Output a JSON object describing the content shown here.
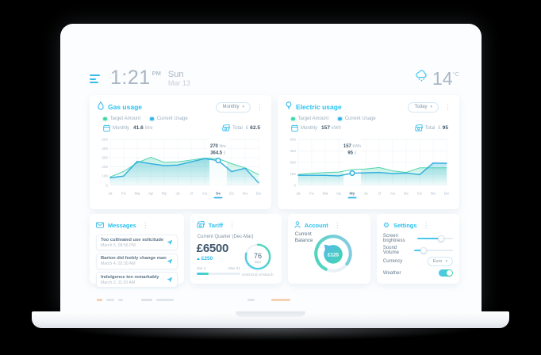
{
  "header": {
    "menu_icon": "hamburger",
    "time": "1:21",
    "meridiem": "PM",
    "day": "Sun",
    "date": "Mar 13",
    "weather_icon": "snow-cloud",
    "temperature": "14",
    "temperature_unit": "°C"
  },
  "panels": {
    "gas": {
      "icon": "droplet-icon",
      "title": "Gas usage",
      "period": "Monthly",
      "legend_target": "Target Amount",
      "legend_current": "Current Usage",
      "stat_label": "Monthly",
      "stat_value": "41.6",
      "stat_unit": "litre",
      "total_label": "Total",
      "total_currency": "£",
      "total_value": "62.5"
    },
    "electric": {
      "icon": "bulb-icon",
      "title": "Electric usage",
      "period": "Today",
      "legend_target": "Target Amount",
      "legend_current": "Current Usage",
      "stat_label": "Monthly",
      "stat_value": "157",
      "stat_unit": "kWh",
      "total_label": "Total",
      "total_currency": "£",
      "total_value": "95"
    },
    "messages": {
      "icon": "envelope-icon",
      "title": "Messages",
      "items": [
        {
          "text": "Too cultivated use solicitude",
          "time": "March 5, 08:56 PM"
        },
        {
          "text": "Barton did feebly change man",
          "time": "March 4, 02:30 AM"
        },
        {
          "text": "Indulgence ten remarkably",
          "time": "March 2, 11:20 AM"
        }
      ]
    },
    "tariff": {
      "icon": "banknotes-icon",
      "title": "Tariff",
      "subtitle": "Current Quarter (Dec-Mar)",
      "amount": "£6500",
      "delta": "£250",
      "range_start": "Jan 1",
      "range_end": "Mar 31",
      "progress_pct": 28,
      "days_value": "76",
      "days_label": "days",
      "footnote": "Until End of March"
    },
    "account": {
      "icon": "person-icon",
      "title": "Account",
      "balance_label": "Current Balance",
      "balance_value": "£125"
    },
    "settings": {
      "icon": "gear-icon",
      "title": "Settings",
      "brightness_label": "Screen brightness",
      "brightness_pct": 66,
      "volume_label": "Sound Volume",
      "volume_pct": 26,
      "currency_label": "Currency",
      "currency_value": "Euro",
      "weather_label": "Weather",
      "weather_on": true
    }
  },
  "chart_data": [
    {
      "name": "gas",
      "type": "area",
      "title": "Gas usage",
      "legend": [
        "Target Amount",
        "Current Usage"
      ],
      "categories": [
        "Ja",
        "Fe",
        "Ma",
        "Ap",
        "My",
        "Ju",
        "Jl",
        "Au",
        "Se",
        "Oc",
        "No",
        "De"
      ],
      "selected_index": 8,
      "yticks": [
        0,
        100,
        200,
        300,
        400,
        500
      ],
      "ymax": 500,
      "grid": true,
      "series": [
        {
          "name": "Target Amount",
          "color": "#4fd4ad",
          "values": [
            90,
            150,
            245,
            305,
            250,
            255,
            275,
            295,
            290,
            235,
            190,
            115
          ]
        },
        {
          "name": "Current Usage",
          "color": "#2faede",
          "values": [
            80,
            100,
            260,
            235,
            215,
            220,
            255,
            290,
            270,
            148,
            185,
            25
          ]
        }
      ],
      "tooltip": {
        "value1": "270",
        "unit1": "litre",
        "value2": "364.5",
        "unit2": "£"
      }
    },
    {
      "name": "electric",
      "type": "area",
      "title": "Electric usage",
      "legend": [
        "Target Amount",
        "Current Usage"
      ],
      "categories": [
        "Ja",
        "Fe",
        "Ma",
        "Ap",
        "My",
        "Ju",
        "Jl",
        "Au",
        "Se",
        "Oc",
        "No",
        "De"
      ],
      "selected_index": 4,
      "yticks": [
        0,
        150,
        300,
        450,
        600
      ],
      "ymax": 600,
      "grid": true,
      "series": [
        {
          "name": "Target Amount",
          "color": "#4fd4ad",
          "values": [
            140,
            155,
            165,
            172,
            205,
            212,
            232,
            188,
            168,
            228,
            228,
            228
          ]
        },
        {
          "name": "Current Usage",
          "color": "#2faede",
          "values": [
            130,
            130,
            128,
            122,
            157,
            162,
            168,
            152,
            160,
            138,
            290,
            287
          ]
        }
      ],
      "tooltip": {
        "value1": "157",
        "unit1": "kWh",
        "value2": "95",
        "unit2": "£"
      }
    }
  ]
}
